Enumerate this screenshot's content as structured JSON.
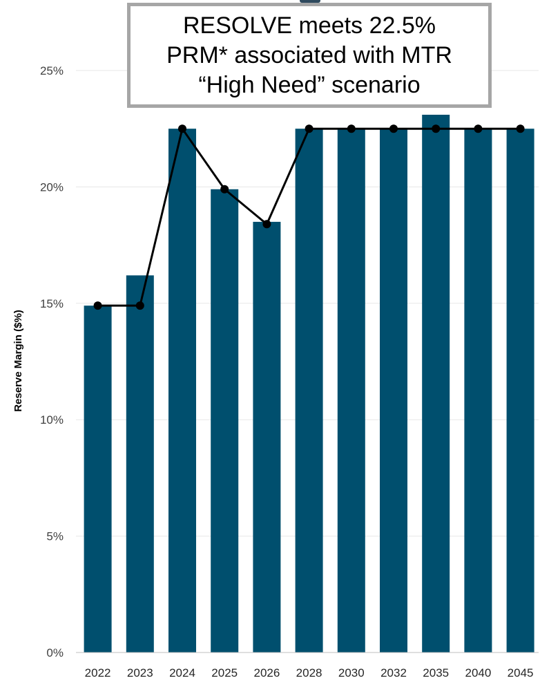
{
  "callout": {
    "lines": [
      "RESOLVE meets 22.5%",
      "PRM* associated with MTR",
      "“High Need” scenario"
    ]
  },
  "colors": {
    "bar": "#004f6e",
    "line": "#000000",
    "grid": "#e7e7e7",
    "callout_border": "#a6a6a6"
  },
  "chart_data": {
    "type": "bar",
    "ylabel": "Reserve Margin ($%)",
    "xlabel": "",
    "title": "",
    "ylim": [
      0,
      25
    ],
    "yticks": [
      0,
      5,
      10,
      15,
      20,
      25
    ],
    "ytick_labels": [
      "0%",
      "5%",
      "10%",
      "15%",
      "20%",
      "25%"
    ],
    "grid": true,
    "categories": [
      "2022",
      "2023",
      "2024",
      "2025",
      "2026",
      "2028",
      "2030",
      "2032",
      "2035",
      "2040",
      "2045"
    ],
    "series": [
      {
        "type": "bar",
        "values": [
          14.9,
          16.2,
          22.5,
          19.9,
          18.5,
          22.5,
          22.5,
          22.5,
          23.1,
          22.5,
          22.5
        ]
      },
      {
        "type": "line",
        "values": [
          14.9,
          14.9,
          22.5,
          19.9,
          18.4,
          22.5,
          22.5,
          22.5,
          22.5,
          22.5,
          22.5
        ]
      }
    ]
  }
}
